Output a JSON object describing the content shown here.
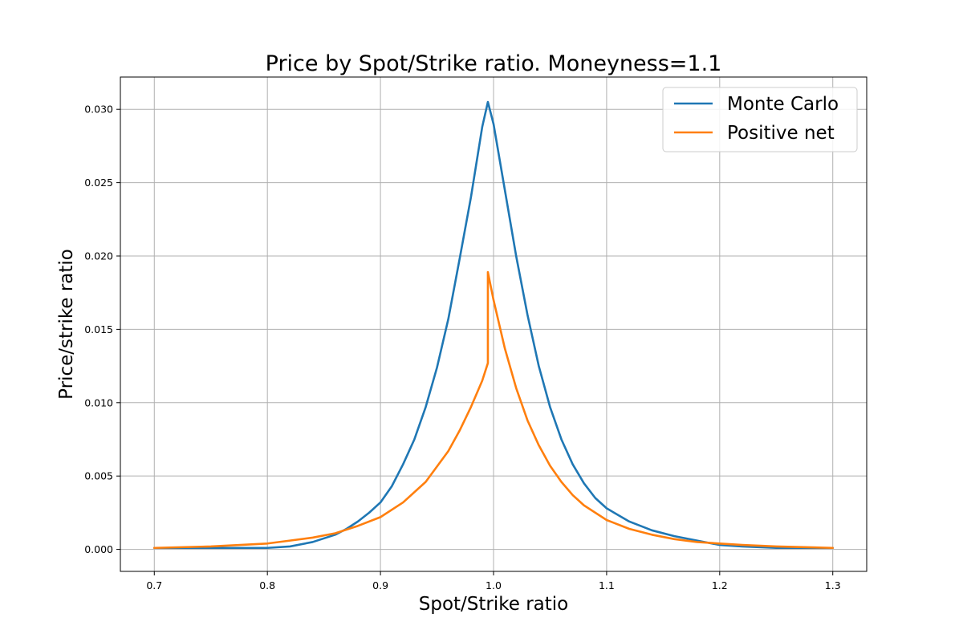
{
  "chart_data": {
    "type": "line",
    "title": "Price by Spot/Strike ratio. Moneyness=1.1",
    "xlabel": "Spot/Strike ratio",
    "ylabel": "Price/strike ratio",
    "xlim": [
      0.67,
      1.33
    ],
    "ylim": [
      -0.0015,
      0.0322
    ],
    "xticks": [
      0.7,
      0.8,
      0.9,
      1.0,
      1.1,
      1.2,
      1.3
    ],
    "xtick_labels": [
      "0.7",
      "0.8",
      "0.9",
      "1.0",
      "1.1",
      "1.2",
      "1.3"
    ],
    "yticks": [
      0.0,
      0.005,
      0.01,
      0.015,
      0.02,
      0.025,
      0.03
    ],
    "ytick_labels": [
      "0.000",
      "0.005",
      "0.010",
      "0.015",
      "0.020",
      "0.025",
      "0.030"
    ],
    "grid": true,
    "legend_position": "top-right",
    "series": [
      {
        "name": "Monte Carlo",
        "color": "#1f77b4",
        "x": [
          0.7,
          0.75,
          0.8,
          0.82,
          0.84,
          0.86,
          0.87,
          0.88,
          0.89,
          0.9,
          0.91,
          0.92,
          0.93,
          0.94,
          0.95,
          0.96,
          0.97,
          0.98,
          0.99,
          0.995,
          1.0,
          1.01,
          1.02,
          1.03,
          1.04,
          1.05,
          1.06,
          1.07,
          1.08,
          1.09,
          1.1,
          1.12,
          1.14,
          1.16,
          1.18,
          1.2,
          1.22,
          1.25,
          1.3
        ],
        "y": [
          0.0001,
          0.0001,
          0.0001,
          0.0002,
          0.0005,
          0.001,
          0.0014,
          0.0019,
          0.0025,
          0.0032,
          0.0043,
          0.0058,
          0.0075,
          0.0097,
          0.0124,
          0.0157,
          0.0198,
          0.024,
          0.0288,
          0.0305,
          0.029,
          0.0245,
          0.02,
          0.016,
          0.0125,
          0.0097,
          0.0075,
          0.0058,
          0.0045,
          0.0035,
          0.0028,
          0.0019,
          0.0013,
          0.0009,
          0.0006,
          0.0003,
          0.0002,
          0.0001,
          0.0001
        ]
      },
      {
        "name": "Positive net",
        "color": "#ff7f0e",
        "x": [
          0.7,
          0.75,
          0.8,
          0.82,
          0.84,
          0.86,
          0.88,
          0.9,
          0.92,
          0.94,
          0.96,
          0.97,
          0.98,
          0.99,
          0.995,
          0.995,
          1.0,
          1.01,
          1.02,
          1.03,
          1.04,
          1.05,
          1.06,
          1.07,
          1.08,
          1.1,
          1.12,
          1.14,
          1.16,
          1.18,
          1.2,
          1.22,
          1.25,
          1.3
        ],
        "y": [
          0.0001,
          0.0002,
          0.0004,
          0.0006,
          0.0008,
          0.0011,
          0.0016,
          0.0022,
          0.0032,
          0.0046,
          0.0067,
          0.0081,
          0.0097,
          0.0115,
          0.0127,
          0.0189,
          0.017,
          0.0137,
          0.011,
          0.0088,
          0.0071,
          0.0057,
          0.0046,
          0.0037,
          0.003,
          0.002,
          0.0014,
          0.001,
          0.0007,
          0.0005,
          0.0004,
          0.0003,
          0.0002,
          0.0001
        ]
      }
    ]
  }
}
